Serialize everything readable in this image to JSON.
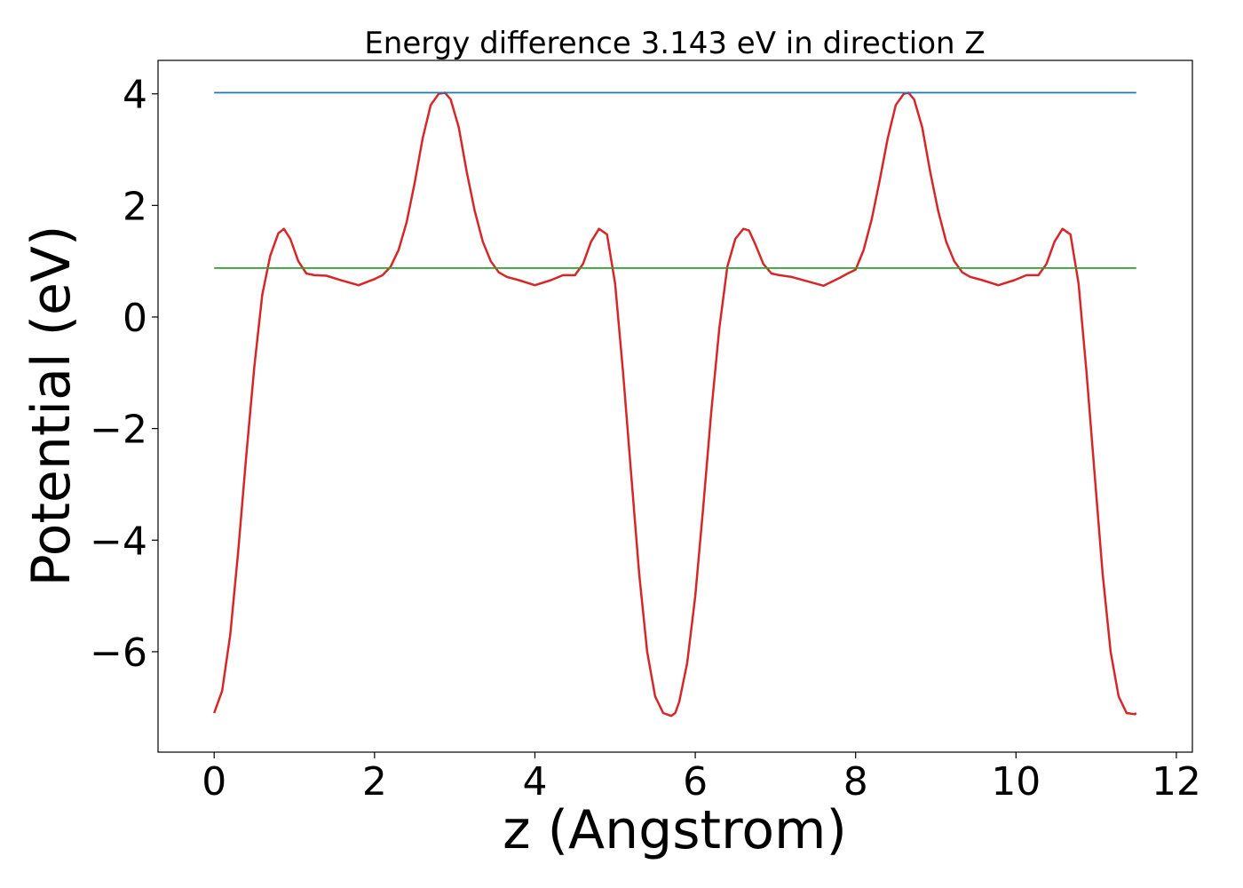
{
  "chart_data": {
    "type": "line",
    "title": "Energy difference 3.143 eV in direction Z",
    "xlabel": "z (Angstrom)",
    "ylabel": "Potential (eV)",
    "xlim": [
      -0.7,
      12.2
    ],
    "ylim": [
      -7.8,
      4.6
    ],
    "xticks": [
      0,
      2,
      4,
      6,
      8,
      10,
      12
    ],
    "xtick_labels": [
      "0",
      "2",
      "4",
      "6",
      "8",
      "10",
      "12"
    ],
    "yticks": [
      -6,
      -4,
      -2,
      0,
      2,
      4
    ],
    "ytick_labels": [
      "−6",
      "−4",
      "−2",
      "0",
      "2",
      "4"
    ],
    "grid": false,
    "legend": "none",
    "series": [
      {
        "color": "#d62728",
        "x": [
          0.0,
          0.1,
          0.2,
          0.3,
          0.4,
          0.5,
          0.6,
          0.7,
          0.8,
          0.87,
          0.95,
          1.05,
          1.15,
          1.25,
          1.4,
          1.6,
          1.8,
          2.0,
          2.1,
          2.2,
          2.3,
          2.4,
          2.5,
          2.6,
          2.7,
          2.8,
          2.88,
          2.95,
          3.05,
          3.15,
          3.25,
          3.35,
          3.45,
          3.55,
          3.65,
          3.8,
          4.0,
          4.2,
          4.35,
          4.5,
          4.6,
          4.7,
          4.8,
          4.9,
          5.0,
          5.1,
          5.2,
          5.3,
          5.4,
          5.5,
          5.6,
          5.7,
          5.75,
          5.8,
          5.9,
          6.0,
          6.1,
          6.2,
          6.3,
          6.4,
          6.5,
          6.6,
          6.67,
          6.75,
          6.85,
          6.95,
          7.05,
          7.2,
          7.4,
          7.6,
          7.8,
          7.9,
          8.0,
          8.1,
          8.2,
          8.3,
          8.4,
          8.5,
          8.6,
          8.66,
          8.73,
          8.83,
          8.93,
          9.03,
          9.13,
          9.23,
          9.33,
          9.43,
          9.58,
          9.78,
          9.98,
          10.13,
          10.28,
          10.38,
          10.48,
          10.58,
          10.68,
          10.78,
          10.88,
          10.98,
          11.08,
          11.18,
          11.28,
          11.38,
          11.48,
          11.5
        ],
        "y": [
          -7.1,
          -6.7,
          -5.7,
          -4.2,
          -2.5,
          -0.9,
          0.4,
          1.1,
          1.5,
          1.58,
          1.4,
          1.0,
          0.78,
          0.75,
          0.74,
          0.65,
          0.57,
          0.68,
          0.75,
          0.9,
          1.2,
          1.7,
          2.4,
          3.2,
          3.8,
          4.0,
          4.02,
          3.9,
          3.4,
          2.6,
          1.9,
          1.35,
          1.0,
          0.8,
          0.72,
          0.66,
          0.57,
          0.66,
          0.75,
          0.75,
          0.95,
          1.35,
          1.58,
          1.48,
          0.6,
          -1.0,
          -2.8,
          -4.6,
          -6.0,
          -6.8,
          -7.1,
          -7.15,
          -7.1,
          -6.9,
          -6.2,
          -5.0,
          -3.4,
          -1.7,
          -0.2,
          0.9,
          1.4,
          1.58,
          1.55,
          1.3,
          0.95,
          0.78,
          0.75,
          0.72,
          0.64,
          0.56,
          0.7,
          0.78,
          0.85,
          1.2,
          1.75,
          2.45,
          3.2,
          3.8,
          4.0,
          4.02,
          3.9,
          3.4,
          2.6,
          1.9,
          1.35,
          1.0,
          0.8,
          0.72,
          0.66,
          0.57,
          0.66,
          0.75,
          0.75,
          0.95,
          1.35,
          1.58,
          1.48,
          0.6,
          -1.0,
          -2.8,
          -4.6,
          -6.0,
          -6.8,
          -7.1,
          -7.12,
          -7.1
        ]
      },
      {
        "color": "#1f77b4",
        "x": [
          0.0,
          11.5
        ],
        "y": [
          4.02,
          4.02
        ]
      },
      {
        "color": "#2ca02c",
        "x": [
          0.0,
          11.5
        ],
        "y": [
          0.877,
          0.877
        ]
      }
    ]
  }
}
